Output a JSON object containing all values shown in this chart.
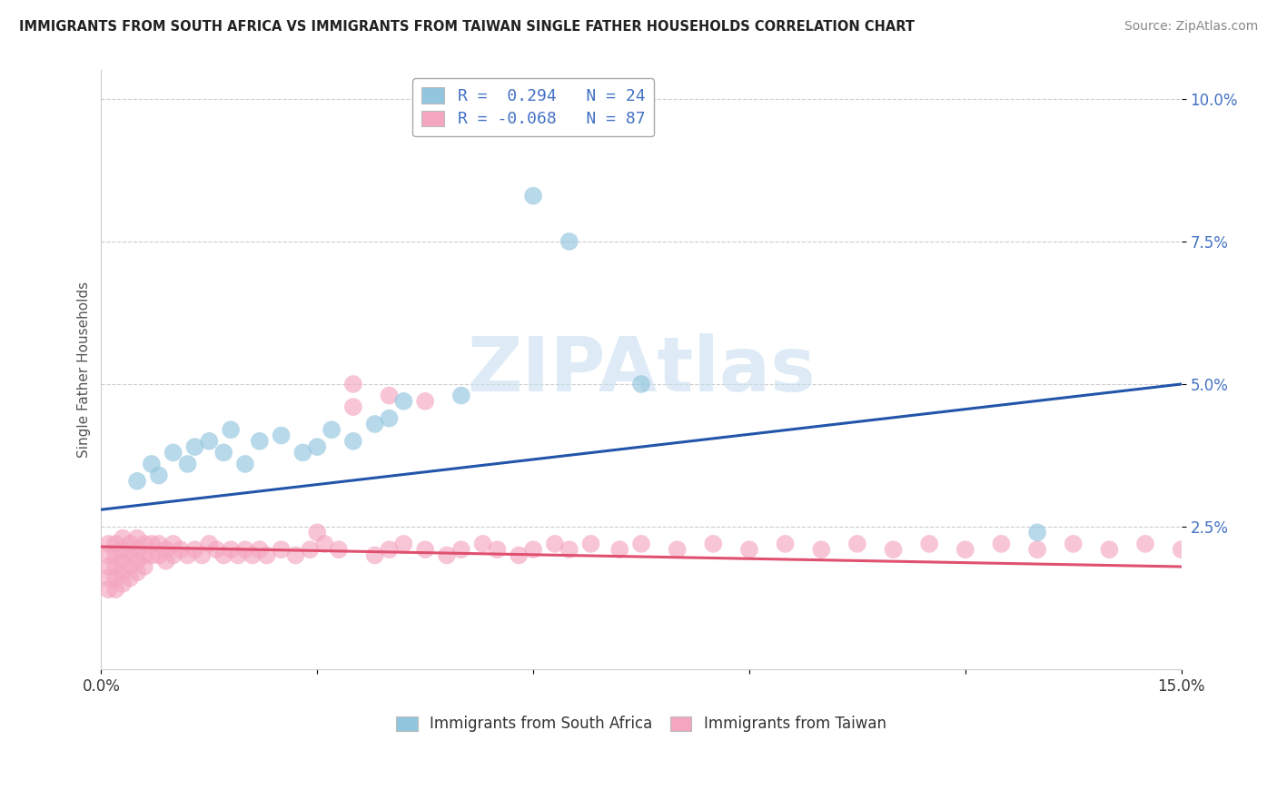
{
  "title": "IMMIGRANTS FROM SOUTH AFRICA VS IMMIGRANTS FROM TAIWAN SINGLE FATHER HOUSEHOLDS CORRELATION CHART",
  "source": "Source: ZipAtlas.com",
  "ylabel": "Single Father Households",
  "xlim": [
    0.0,
    0.15
  ],
  "ylim": [
    0.0,
    0.105
  ],
  "xtick_positions": [
    0.0,
    0.03,
    0.06,
    0.09,
    0.12,
    0.15
  ],
  "xticklabels": [
    "0.0%",
    "",
    "",
    "",
    "",
    "15.0%"
  ],
  "ytick_positions": [
    0.025,
    0.05,
    0.075,
    0.1
  ],
  "ytick_labels": [
    "2.5%",
    "5.0%",
    "7.5%",
    "10.0%"
  ],
  "color_blue": "#92C5DE",
  "color_pink": "#F4A6C0",
  "line_blue": "#2255AA",
  "line_pink": "#E05070",
  "watermark_text": "ZIPAtlas",
  "watermark_color": "#C8DFF0",
  "legend1_label": "R =  0.294   N = 24",
  "legend2_label": "R = -0.068   N = 87",
  "bottom_label1": "Immigrants from South Africa",
  "bottom_label2": "Immigrants from Taiwan",
  "blue_line_x0": 0.0,
  "blue_line_y0": 0.028,
  "blue_line_x1": 0.15,
  "blue_line_y1": 0.05,
  "pink_line_x0": 0.0,
  "pink_line_y0": 0.0215,
  "pink_line_x1": 0.15,
  "pink_line_y1": 0.018,
  "sa_x": [
    0.005,
    0.007,
    0.008,
    0.01,
    0.012,
    0.013,
    0.015,
    0.017,
    0.018,
    0.02,
    0.022,
    0.025,
    0.028,
    0.03,
    0.032,
    0.035,
    0.038,
    0.04,
    0.042,
    0.05,
    0.06,
    0.065,
    0.075,
    0.13
  ],
  "sa_y": [
    0.033,
    0.036,
    0.034,
    0.038,
    0.036,
    0.039,
    0.04,
    0.038,
    0.042,
    0.036,
    0.04,
    0.041,
    0.038,
    0.039,
    0.042,
    0.04,
    0.043,
    0.044,
    0.047,
    0.048,
    0.083,
    0.075,
    0.05,
    0.024
  ],
  "tw_x": [
    0.001,
    0.001,
    0.001,
    0.001,
    0.001,
    0.002,
    0.002,
    0.002,
    0.002,
    0.002,
    0.003,
    0.003,
    0.003,
    0.003,
    0.003,
    0.004,
    0.004,
    0.004,
    0.004,
    0.005,
    0.005,
    0.005,
    0.005,
    0.006,
    0.006,
    0.006,
    0.007,
    0.007,
    0.008,
    0.008,
    0.009,
    0.009,
    0.01,
    0.01,
    0.011,
    0.012,
    0.013,
    0.014,
    0.015,
    0.016,
    0.017,
    0.018,
    0.019,
    0.02,
    0.021,
    0.022,
    0.023,
    0.025,
    0.027,
    0.029,
    0.031,
    0.033,
    0.035,
    0.038,
    0.04,
    0.042,
    0.045,
    0.048,
    0.05,
    0.053,
    0.055,
    0.058,
    0.06,
    0.063,
    0.065,
    0.068,
    0.072,
    0.075,
    0.08,
    0.085,
    0.09,
    0.095,
    0.1,
    0.105,
    0.11,
    0.115,
    0.12,
    0.125,
    0.13,
    0.135,
    0.14,
    0.145,
    0.15,
    0.04,
    0.045,
    0.035,
    0.03
  ],
  "tw_y": [
    0.022,
    0.02,
    0.018,
    0.016,
    0.014,
    0.022,
    0.02,
    0.018,
    0.016,
    0.014,
    0.023,
    0.021,
    0.019,
    0.017,
    0.015,
    0.022,
    0.02,
    0.018,
    0.016,
    0.023,
    0.021,
    0.019,
    0.017,
    0.022,
    0.02,
    0.018,
    0.022,
    0.02,
    0.022,
    0.02,
    0.021,
    0.019,
    0.022,
    0.02,
    0.021,
    0.02,
    0.021,
    0.02,
    0.022,
    0.021,
    0.02,
    0.021,
    0.02,
    0.021,
    0.02,
    0.021,
    0.02,
    0.021,
    0.02,
    0.021,
    0.022,
    0.021,
    0.05,
    0.02,
    0.021,
    0.022,
    0.021,
    0.02,
    0.021,
    0.022,
    0.021,
    0.02,
    0.021,
    0.022,
    0.021,
    0.022,
    0.021,
    0.022,
    0.021,
    0.022,
    0.021,
    0.022,
    0.021,
    0.022,
    0.021,
    0.022,
    0.021,
    0.022,
    0.021,
    0.022,
    0.021,
    0.022,
    0.021,
    0.048,
    0.047,
    0.046,
    0.024
  ]
}
